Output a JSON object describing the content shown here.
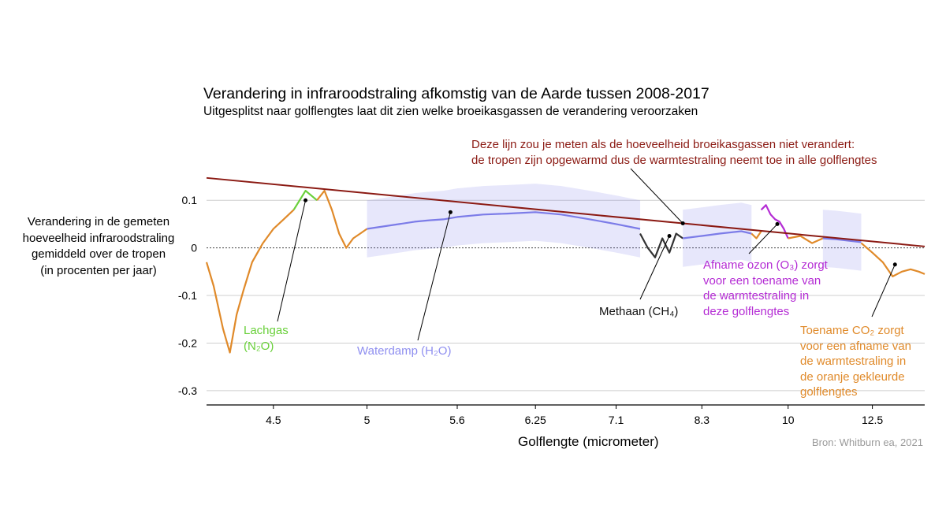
{
  "chart_data": {
    "type": "line",
    "title": "Verandering in infraroodstraling afkomstig van de Aarde tussen 2008-2017",
    "subtitle": "Uitgesplitst naar golflengtes laat dit zien welke broeikasgassen de verandering veroorzaken",
    "xlabel": "Golflengte (micrometer)",
    "ylabel_lines": [
      "Verandering in de gemeten",
      "hoeveelheid infraroodstraling",
      "gemiddeld over de tropen",
      "(in procenten per jaar)"
    ],
    "ylim": [
      -0.33,
      0.15
    ],
    "y_ticks": [
      0.1,
      0,
      -0.1,
      -0.2,
      -0.3
    ],
    "y_tick_labels": [
      "0.1",
      "0",
      "-0.1",
      "-0.2",
      "-0.3"
    ],
    "x_ticks": [
      4.5,
      5,
      5.6,
      6.25,
      7.1,
      8.3,
      10,
      12.5
    ],
    "x_tick_labels": [
      "4.5",
      "5",
      "5.6",
      "6.25",
      "7.1",
      "8.3",
      "10",
      "12.5"
    ],
    "x_scale": "wavenumber",
    "xlim": [
      4.2,
      14.8
    ],
    "grid": "horizontal",
    "source": "Bron: Whitburn ea, 2021",
    "reference_line": {
      "label_lines": [
        "Deze lijn zou je meten als de hoeveelheid broeikasgassen niet verandert:",
        "de tropen zijn opgewarmd dus de warmtestraling neemt toe in alle golflengtes"
      ],
      "x": [
        4.2,
        14.8
      ],
      "y": [
        0.147,
        0.003
      ],
      "color": "#8b1a13"
    },
    "series": [
      {
        "gas": "CO2",
        "color": "#e08a2a",
        "x": [
          4.2,
          4.23,
          4.27,
          4.3,
          4.33,
          4.36,
          4.4,
          4.45,
          4.5,
          4.55,
          4.6
        ],
        "y": [
          -0.03,
          -0.08,
          -0.17,
          -0.22,
          -0.14,
          -0.09,
          -0.03,
          0.01,
          0.04,
          0.06,
          0.08
        ]
      },
      {
        "gas": "N2O",
        "color": "#69d03a",
        "x": [
          4.6,
          4.63,
          4.66,
          4.69,
          4.72
        ],
        "y": [
          0.08,
          0.1,
          0.12,
          0.11,
          0.1
        ]
      },
      {
        "gas": "CO2",
        "color": "#e08a2a",
        "x": [
          4.72,
          4.76,
          4.8,
          4.84,
          4.88,
          4.92,
          4.96,
          5.0
        ],
        "y": [
          0.1,
          0.12,
          0.08,
          0.03,
          0.0,
          0.02,
          0.03,
          0.04
        ]
      },
      {
        "gas": "H2O",
        "color": "#7c7ce8",
        "x": [
          5.0,
          5.1,
          5.2,
          5.3,
          5.4,
          5.5,
          5.6,
          5.8,
          6.0,
          6.25,
          6.5,
          6.8,
          7.1,
          7.4
        ],
        "y": [
          0.04,
          0.045,
          0.05,
          0.055,
          0.058,
          0.06,
          0.065,
          0.07,
          0.072,
          0.075,
          0.07,
          0.06,
          0.05,
          0.04
        ]
      },
      {
        "gas": "CH4",
        "color": "#333333",
        "x": [
          7.4,
          7.5,
          7.6,
          7.7,
          7.8,
          7.9,
          8.0
        ],
        "y": [
          0.03,
          0.0,
          -0.02,
          0.02,
          -0.01,
          0.03,
          0.02
        ]
      },
      {
        "gas": "H2O",
        "color": "#7c7ce8",
        "x": [
          8.0,
          8.3,
          8.6,
          9.0,
          9.2
        ],
        "y": [
          0.02,
          0.025,
          0.03,
          0.035,
          0.03
        ]
      },
      {
        "gas": "CO2",
        "color": "#e08a2a",
        "x": [
          9.2,
          9.3,
          9.4
        ],
        "y": [
          0.03,
          0.02,
          0.035
        ]
      },
      {
        "gas": "O3",
        "color": "#b42cd4",
        "x": [
          9.4,
          9.5,
          9.6,
          9.7,
          9.8,
          9.9,
          10.0
        ],
        "y": [
          0.08,
          0.09,
          0.07,
          0.06,
          0.055,
          0.04,
          0.02
        ]
      },
      {
        "gas": "CO2",
        "color": "#e08a2a",
        "x": [
          10.0,
          10.3,
          10.6,
          10.9
        ],
        "y": [
          0.02,
          0.025,
          0.01,
          0.02
        ]
      },
      {
        "gas": "H2O",
        "color": "#7c7ce8",
        "x": [
          10.9,
          11.3,
          11.7,
          12.1
        ],
        "y": [
          0.02,
          0.018,
          0.015,
          0.012
        ]
      },
      {
        "gas": "CO2",
        "color": "#e08a2a",
        "x": [
          12.1,
          12.5,
          12.9,
          13.3,
          13.7,
          14.1,
          14.5,
          14.8
        ],
        "y": [
          0.01,
          -0.01,
          -0.03,
          -0.06,
          -0.05,
          -0.045,
          -0.05,
          -0.055
        ]
      }
    ],
    "annotations": [
      {
        "id": "n2o",
        "lines": [
          "Lachgas",
          "(N₂O)"
        ],
        "color": "#69d03a",
        "point": [
          4.66,
          0.1
        ]
      },
      {
        "id": "h2o",
        "lines": [
          "Waterdamp (H₂O)"
        ],
        "color": "#8f8ff0",
        "point": [
          5.55,
          0.075
        ]
      },
      {
        "id": "ch4",
        "lines": [
          "Methaan (CH₄)"
        ],
        "color": "#111111",
        "point": [
          7.8,
          0.025
        ]
      },
      {
        "id": "o3",
        "lines": [
          "Afname ozon (O₃) zorgt",
          "voor een toename van",
          "de warmtestraling in",
          "deze golflengtes"
        ],
        "color": "#b42cd4",
        "point": [
          9.75,
          0.05
        ]
      },
      {
        "id": "co2",
        "lines": [
          "Toename CO₂ zorgt",
          "voor een afname van",
          "de warmtestraling in",
          "de oranje gekleurde",
          "golflengtes"
        ],
        "color": "#e08a2a",
        "point": [
          13.4,
          -0.035
        ]
      }
    ]
  }
}
